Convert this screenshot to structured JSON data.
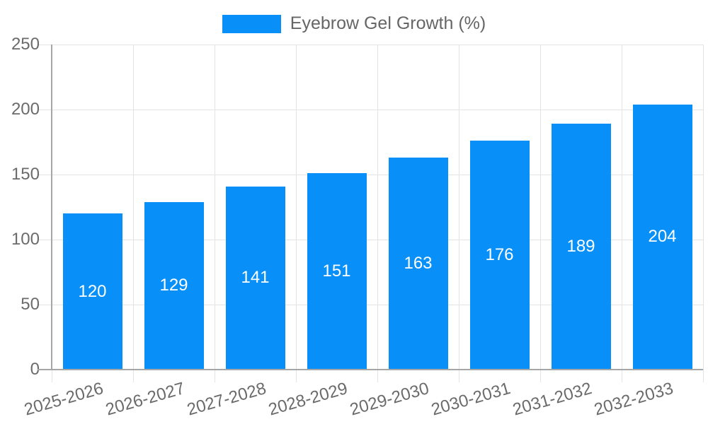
{
  "legend": {
    "label": "Eyebrow Gel Growth (%)"
  },
  "chart_data": {
    "type": "bar",
    "title": "",
    "xlabel": "",
    "ylabel": "",
    "categories": [
      "2025-2026",
      "2026-2027",
      "2027-2028",
      "2028-2029",
      "2029-2030",
      "2030-2031",
      "2031-2032",
      "2032-2033"
    ],
    "values": [
      120,
      129,
      141,
      151,
      163,
      176,
      189,
      204
    ],
    "series_name": "Eyebrow Gel Growth (%)",
    "ylim": [
      0,
      250
    ],
    "yticks": [
      0,
      50,
      100,
      150,
      200,
      250
    ],
    "grid": true,
    "legend_position": "top-center",
    "bar_color": "#0890f8",
    "value_labels_shown": true,
    "value_label_color": "#ffffff"
  }
}
